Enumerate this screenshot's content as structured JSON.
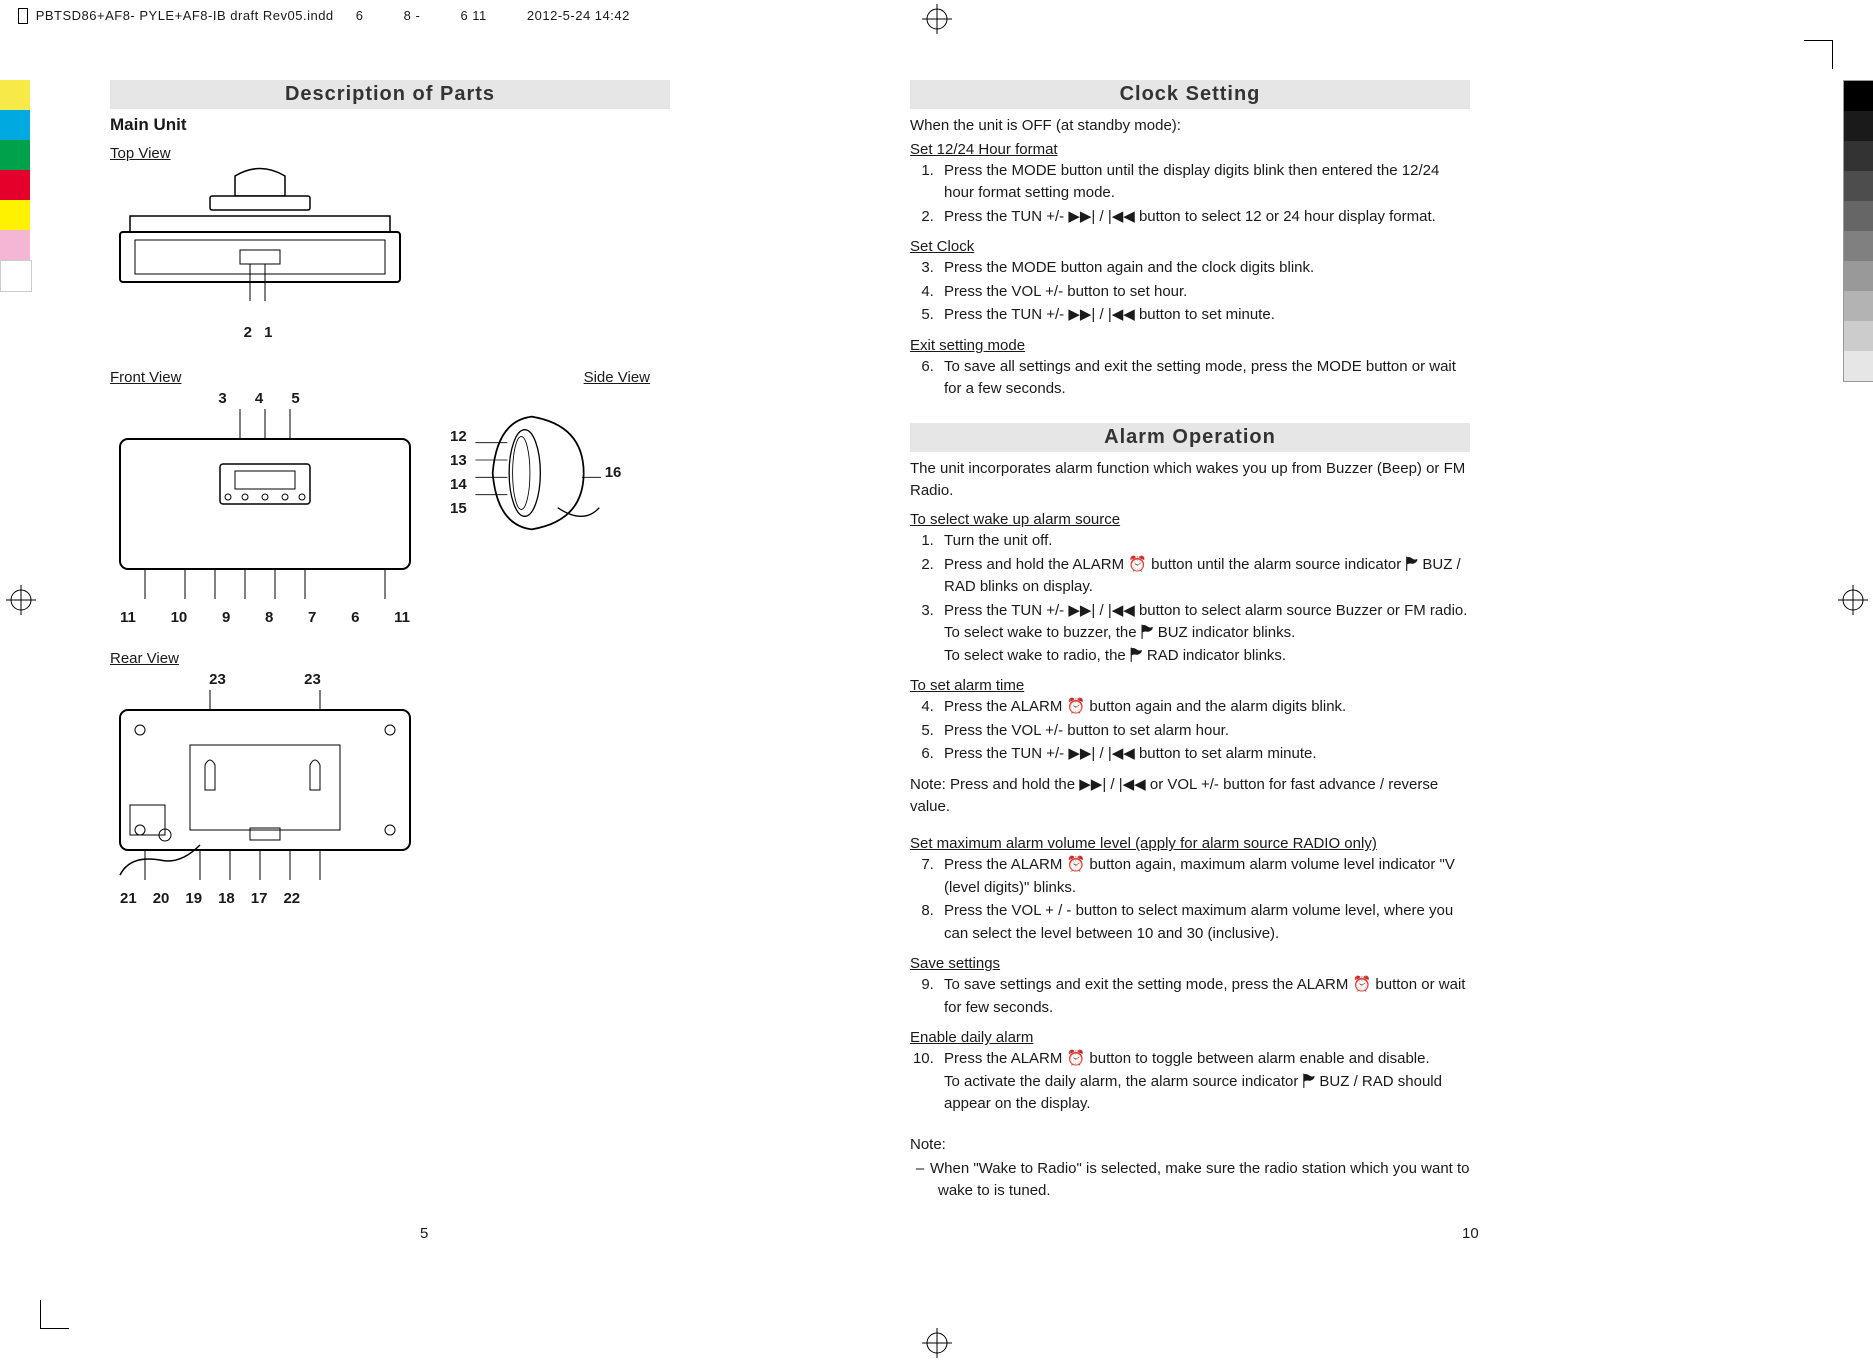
{
  "header": {
    "filename": "PBTSD86+AF8- PYLE+AF8-IB draft Rev05.indd",
    "spread": "6",
    "range": "8 -",
    "sig": "6   11",
    "timestamp": "2012-5-24 14:42"
  },
  "colorbar": [
    "#f7e948",
    "#00a9e0",
    "#00a14b",
    "#e4002b",
    "#fff200",
    "#f5b6d6",
    "#ffffff"
  ],
  "graybar": [
    "#000000",
    "#1a1a1a",
    "#333333",
    "#4d4d4d",
    "#666666",
    "#808080",
    "#999999",
    "#b3b3b3",
    "#cccccc",
    "#e6e6e6"
  ],
  "left": {
    "section_title": "Description of Parts",
    "main_unit": "Main Unit",
    "top_view": "Top View",
    "top_callouts": "2  1",
    "front_view": "Front View",
    "side_view": "Side View",
    "front_top": "3   4   5",
    "side_nums": [
      "12",
      "13",
      "14",
      "15"
    ],
    "side_right": "16",
    "front_bottom": [
      "11",
      "10",
      "9",
      "8",
      "7",
      "6",
      "11"
    ],
    "rear_view": "Rear View",
    "rear_top": [
      "23",
      "23"
    ],
    "rear_bottom": [
      "21",
      "20",
      "19",
      "18",
      "17",
      "22"
    ],
    "page_num": "5"
  },
  "right": {
    "clock_title": "Clock Setting",
    "clock_intro": "When the unit is OFF (at standby mode):",
    "set_1224": "Set 12/24 Hour format",
    "clock_steps_a": [
      "Press the MODE button until the display digits blink then entered the 12/24 hour format setting mode.",
      "Press the TUN +/-  ▶▶| / |◀◀ button to select 12 or 24 hour display format."
    ],
    "set_clock": "Set Clock",
    "clock_steps_b": [
      "Press the MODE button again and the clock digits blink.",
      "Press the VOL +/- button to set hour.",
      "Press the TUN +/-  ▶▶| / |◀◀ button to set minute."
    ],
    "exit_mode": "Exit setting mode",
    "clock_steps_c": [
      "To save all settings and exit the setting mode, press the MODE button or wait for a few seconds."
    ],
    "alarm_title": "Alarm Operation",
    "alarm_intro": "The unit incorporates alarm function which wakes you up from Buzzer (Beep) or FM Radio.",
    "sel_source": "To select wake up alarm source",
    "alarm_steps_a": [
      "Turn the unit off.",
      "Press and hold the ALARM  ⏰ button until the alarm source indicator  🏲 BUZ / RAD blinks on display.",
      "Press the TUN +/-  ▶▶| / |◀◀ button to select alarm source Buzzer or FM radio.\nTo select wake to buzzer, the  🏲 BUZ indicator blinks.\nTo select wake to radio, the  🏲 RAD indicator blinks."
    ],
    "set_time": "To set alarm time",
    "alarm_steps_b": [
      "Press the ALARM  ⏰ button again and the alarm digits blink.",
      "Press the VOL +/- button to set alarm hour.",
      "Press the TUN +/-  ▶▶| / |◀◀ button to set alarm minute."
    ],
    "alarm_note1": "Note: Press and hold the  ▶▶| / |◀◀ or VOL +/- button for fast advance / reverse value.",
    "max_vol": "Set maximum alarm volume level (apply for alarm source RADIO only)",
    "alarm_steps_c": [
      "Press the ALARM  ⏰  button again, maximum alarm volume level indicator \"V (level digits)\" blinks.",
      "Press the VOL + / - button to select maximum alarm volume level, where you can select the level between 10 and 30 (inclusive)."
    ],
    "save_settings": "Save settings",
    "alarm_steps_d": [
      "To save settings and exit the setting mode, press the ALARM  ⏰ button or wait for few seconds."
    ],
    "enable_daily": "Enable daily alarm",
    "alarm_steps_e": [
      "Press the ALARM  ⏰ button to toggle between alarm enable and disable.\nTo activate the daily alarm, the alarm source indicator  🏲 BUZ / RAD should appear on the display."
    ],
    "note_label": "Note:",
    "note_body": "When \"Wake to Radio\" is selected, make sure the radio station which you want to wake to is tuned.",
    "page_num": "10"
  }
}
